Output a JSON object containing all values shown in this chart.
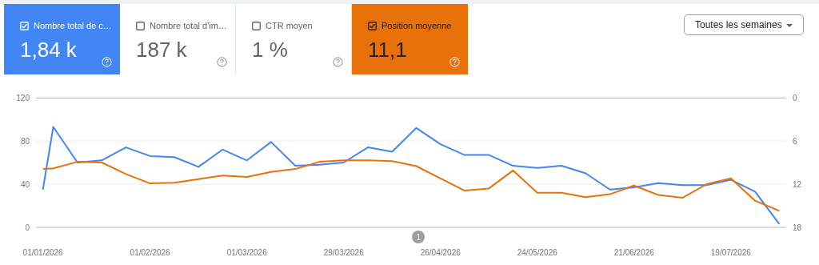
{
  "chart_data": [
    {
      "type": "other",
      "categories": [
        "Nombre total de c…",
        "Nombre total d'im…",
        "CTR moyen",
        "Position moyenne"
      ],
      "value_labels": [
        "1,84 k",
        "187 k",
        "1 %",
        "11,1"
      ],
      "colors": [
        "#4285f4",
        null,
        null,
        "#e8710a"
      ],
      "annotations": [
        "Toutes les semaines"
      ]
    },
    {
      "type": "line",
      "x": [
        "2026-01-01",
        "2026-01-04",
        "2026-01-11",
        "2026-01-18",
        "2026-01-25",
        "2026-02-01",
        "2026-02-08",
        "2026-02-15",
        "2026-02-22",
        "2026-03-01",
        "2026-03-08",
        "2026-03-15",
        "2026-03-22",
        "2026-03-29",
        "2026-04-05",
        "2026-04-12",
        "2026-04-19",
        "2026-04-26",
        "2026-05-03",
        "2026-05-10",
        "2026-05-17",
        "2026-05-24",
        "2026-05-31",
        "2026-06-07",
        "2026-06-14",
        "2026-06-21",
        "2026-06-28",
        "2026-07-05",
        "2026-07-12",
        "2026-07-19",
        "2026-07-26",
        "2026-08-02"
      ],
      "series": [
        {
          "color": "#4285f4",
          "values": [
            35,
            93,
            60,
            62,
            74,
            66,
            65,
            56,
            72,
            62,
            79,
            57,
            58,
            60,
            74,
            70,
            92,
            77,
            67,
            67,
            57,
            55,
            57,
            50,
            35,
            37,
            41,
            39,
            39,
            44,
            33,
            3
          ]
        },
        {
          "color": "#e8710a",
          "axis": "y2",
          "values": [
            9.9,
            9.8,
            8.9,
            9.0,
            10.6,
            11.9,
            11.8,
            11.3,
            10.8,
            11.0,
            10.3,
            9.9,
            8.9,
            8.7,
            8.7,
            8.8,
            9.5,
            11.2,
            12.9,
            12.6,
            10.1,
            13.2,
            13.2,
            13.8,
            13.4,
            12.2,
            13.5,
            13.9,
            12.0,
            11.2,
            14.3,
            15.7
          ]
        }
      ],
      "xlim": [
        "2025-12-30",
        "2026-08-04"
      ],
      "xticks": [
        {
          "value": "2026-01-01",
          "label": "01/01/2026"
        },
        {
          "value": "2026-02-01",
          "label": "01/02/2026"
        },
        {
          "value": "2026-03-01",
          "label": "01/03/2026"
        },
        {
          "value": "2026-03-29",
          "label": "29/03/2026"
        },
        {
          "value": "2026-04-26",
          "label": "26/04/2026"
        },
        {
          "value": "2026-05-24",
          "label": "24/05/2026"
        },
        {
          "value": "2026-06-21",
          "label": "21/06/2026"
        },
        {
          "value": "2026-07-19",
          "label": "19/07/2026"
        }
      ],
      "ylim": [
        0,
        120
      ],
      "yticks": [
        0,
        40,
        80,
        120
      ],
      "y2lim": [
        18,
        0
      ],
      "y2ticks": [
        0,
        6,
        12,
        18
      ],
      "grid": "y",
      "marker": "none",
      "line_style": "solid",
      "annotations": [
        "1"
      ]
    }
  ]
}
